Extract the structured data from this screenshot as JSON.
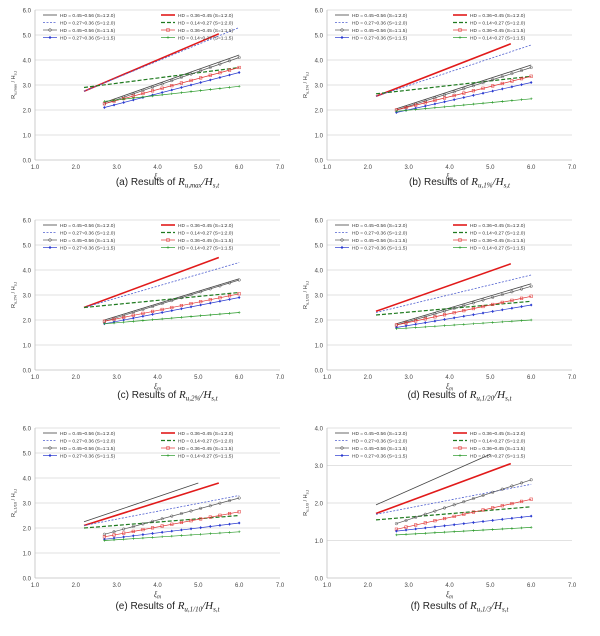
{
  "charts": [
    {
      "chart_data": {
        "type": "line",
        "caption": {
          "prefix": "(a) Results of ",
          "main": "R",
          "sub": "u,max",
          "suffix": "/H",
          "suffix_sub": "s,t"
        },
        "xlabel": {
          "main": "ξ",
          "sub": "m"
        },
        "ylabel": {
          "main": "R",
          "sub": "u,max",
          "tail": " / H",
          "tail_sub": "s,t"
        },
        "xlim": [
          1.0,
          7.0
        ],
        "ylim": [
          0.0,
          6.0
        ],
        "xticks": [
          "1.0",
          "2.0",
          "3.0",
          "4.0",
          "5.0",
          "6.0",
          "7.0"
        ],
        "yticks": [
          "0.0",
          "1.0",
          "2.0",
          "3.0",
          "4.0",
          "5.0",
          "6.0"
        ],
        "grid": true,
        "legend_position": "top",
        "series": [
          {
            "name": "HD = 0.45~0.56 (S=1:2.0)",
            "style": "thin-dark",
            "x": [
              2.7,
              6.0
            ],
            "y": [
              2.3,
              4.2
            ]
          },
          {
            "name": "HD = 0.36~0.45 (S=1:2.0)",
            "style": "bold-red",
            "x": [
              2.2,
              5.5
            ],
            "y": [
              2.75,
              5.05
            ]
          },
          {
            "name": "HD = 0.27~0.36 (S=1:2.0)",
            "style": "dashed-blue",
            "x": [
              2.2,
              6.0
            ],
            "y": [
              2.75,
              5.3
            ]
          },
          {
            "name": "HD = 0.14~0.27 (S=1:2.0)",
            "style": "dashed-green",
            "x": [
              2.2,
              6.0
            ],
            "y": [
              2.9,
              3.7
            ]
          },
          {
            "name": "HD = 0.45~0.56 (S=1:1.5)",
            "style": "marker-dark",
            "x": [
              2.7,
              6.0
            ],
            "y": [
              2.25,
              4.1
            ]
          },
          {
            "name": "HD = 0.36~0.45 (S=1:1.5)",
            "style": "marker-red",
            "x": [
              2.7,
              6.0
            ],
            "y": [
              2.25,
              3.7
            ]
          },
          {
            "name": "HD = 0.27~0.36 (S=1:1.5)",
            "style": "marker-blue",
            "x": [
              2.7,
              6.0
            ],
            "y": [
              2.1,
              3.5
            ]
          },
          {
            "name": "HD = 0.14~0.27 (S=1:1.5)",
            "style": "marker-green",
            "x": [
              2.7,
              6.0
            ],
            "y": [
              2.35,
              2.95
            ]
          }
        ]
      }
    },
    {
      "chart_data": {
        "type": "line",
        "caption": {
          "prefix": "(b) Results of ",
          "main": "R",
          "sub": "u,1%",
          "suffix": "/H",
          "suffix_sub": "s,t"
        },
        "xlabel": {
          "main": "ξ",
          "sub": "m"
        },
        "ylabel": {
          "main": "R",
          "sub": "u,1%",
          "tail": " / H",
          "tail_sub": "s,t"
        },
        "xlim": [
          1.0,
          7.0
        ],
        "ylim": [
          0.0,
          6.0
        ],
        "xticks": [
          "1.0",
          "2.0",
          "3.0",
          "4.0",
          "5.0",
          "6.0",
          "7.0"
        ],
        "yticks": [
          "0.0",
          "1.0",
          "2.0",
          "3.0",
          "4.0",
          "5.0",
          "6.0"
        ],
        "grid": true,
        "legend_position": "top",
        "series": [
          {
            "name": "HD = 0.45~0.56 (S=1:2.0)",
            "style": "thin-dark",
            "x": [
              2.7,
              6.0
            ],
            "y": [
              2.05,
              3.8
            ]
          },
          {
            "name": "HD = 0.36~0.45 (S=1:2.0)",
            "style": "bold-red",
            "x": [
              2.2,
              5.5
            ],
            "y": [
              2.55,
              4.65
            ]
          },
          {
            "name": "HD = 0.27~0.36 (S=1:2.0)",
            "style": "dashed-blue",
            "x": [
              2.2,
              6.0
            ],
            "y": [
              2.55,
              4.6
            ]
          },
          {
            "name": "HD = 0.14~0.27 (S=1:2.0)",
            "style": "dashed-green",
            "x": [
              2.2,
              6.0
            ],
            "y": [
              2.65,
              3.35
            ]
          },
          {
            "name": "HD = 0.45~0.56 (S=1:1.5)",
            "style": "marker-dark",
            "x": [
              2.7,
              6.0
            ],
            "y": [
              2.0,
              3.7
            ]
          },
          {
            "name": "HD = 0.36~0.45 (S=1:1.5)",
            "style": "marker-red",
            "x": [
              2.7,
              6.0
            ],
            "y": [
              2.0,
              3.35
            ]
          },
          {
            "name": "HD = 0.27~0.36 (S=1:1.5)",
            "style": "marker-blue",
            "x": [
              2.7,
              6.0
            ],
            "y": [
              1.9,
              3.1
            ]
          },
          {
            "name": "HD = 0.14~0.27 (S=1:1.5)",
            "style": "marker-green",
            "x": [
              2.7,
              6.0
            ],
            "y": [
              1.95,
              2.45
            ]
          }
        ]
      }
    },
    {
      "chart_data": {
        "type": "line",
        "caption": {
          "prefix": "(c) Results of ",
          "main": "R",
          "sub": "u,2%",
          "suffix": "/H",
          "suffix_sub": "s,t"
        },
        "xlabel": {
          "main": "ξ",
          "sub": "m"
        },
        "ylabel": {
          "main": "R",
          "sub": "u,2%",
          "tail": " / H",
          "tail_sub": "s,t"
        },
        "xlim": [
          1.0,
          7.0
        ],
        "ylim": [
          0.0,
          6.0
        ],
        "xticks": [
          "1.0",
          "2.0",
          "3.0",
          "4.0",
          "5.0",
          "6.0",
          "7.0"
        ],
        "yticks": [
          "0.0",
          "1.0",
          "2.0",
          "3.0",
          "4.0",
          "5.0",
          "6.0"
        ],
        "grid": true,
        "legend_position": "top",
        "series": [
          {
            "name": "HD = 0.45~0.56 (S=1:2.0)",
            "style": "thin-dark",
            "x": [
              2.7,
              6.0
            ],
            "y": [
              2.0,
              3.65
            ]
          },
          {
            "name": "HD = 0.36~0.45 (S=1:2.0)",
            "style": "bold-red",
            "x": [
              2.2,
              5.5
            ],
            "y": [
              2.5,
              4.5
            ]
          },
          {
            "name": "HD = 0.27~0.36 (S=1:2.0)",
            "style": "dashed-blue",
            "x": [
              2.2,
              6.0
            ],
            "y": [
              2.5,
              4.3
            ]
          },
          {
            "name": "HD = 0.14~0.27 (S=1:2.0)",
            "style": "dashed-green",
            "x": [
              2.2,
              6.0
            ],
            "y": [
              2.5,
              3.1
            ]
          },
          {
            "name": "HD = 0.45~0.56 (S=1:1.5)",
            "style": "marker-dark",
            "x": [
              2.7,
              6.0
            ],
            "y": [
              1.95,
              3.6
            ]
          },
          {
            "name": "HD = 0.36~0.45 (S=1:1.5)",
            "style": "marker-red",
            "x": [
              2.7,
              6.0
            ],
            "y": [
              1.95,
              3.05
            ]
          },
          {
            "name": "HD = 0.27~0.36 (S=1:1.5)",
            "style": "marker-blue",
            "x": [
              2.7,
              6.0
            ],
            "y": [
              1.85,
              2.9
            ]
          },
          {
            "name": "HD = 0.14~0.27 (S=1:1.5)",
            "style": "marker-green",
            "x": [
              2.7,
              6.0
            ],
            "y": [
              1.85,
              2.3
            ]
          }
        ]
      }
    },
    {
      "chart_data": {
        "type": "line",
        "caption": {
          "prefix": "(d) Results of ",
          "main": "R",
          "sub": "u,1/20",
          "suffix": "/H",
          "suffix_sub": "s,t"
        },
        "xlabel": {
          "main": "ξ",
          "sub": "m"
        },
        "ylabel": {
          "main": "R",
          "sub": "u,1/20",
          "tail": " / H",
          "tail_sub": "s,t"
        },
        "xlim": [
          1.0,
          7.0
        ],
        "ylim": [
          0.0,
          6.0
        ],
        "xticks": [
          "1.0",
          "2.0",
          "3.0",
          "4.0",
          "5.0",
          "6.0",
          "7.0"
        ],
        "yticks": [
          "0.0",
          "1.0",
          "2.0",
          "3.0",
          "4.0",
          "5.0",
          "6.0"
        ],
        "grid": true,
        "legend_position": "top",
        "series": [
          {
            "name": "HD = 0.45~0.56 (S=1:2.0)",
            "style": "thin-dark",
            "x": [
              2.7,
              6.0
            ],
            "y": [
              1.85,
              3.45
            ]
          },
          {
            "name": "HD = 0.36~0.45 (S=1:2.0)",
            "style": "bold-red",
            "x": [
              2.2,
              5.5
            ],
            "y": [
              2.35,
              4.25
            ]
          },
          {
            "name": "HD = 0.27~0.36 (S=1:2.0)",
            "style": "dashed-blue",
            "x": [
              2.2,
              6.0
            ],
            "y": [
              2.3,
              3.8
            ]
          },
          {
            "name": "HD = 0.14~0.27 (S=1:2.0)",
            "style": "dashed-green",
            "x": [
              2.2,
              6.0
            ],
            "y": [
              2.2,
              2.75
            ]
          },
          {
            "name": "HD = 0.45~0.56 (S=1:1.5)",
            "style": "marker-dark",
            "x": [
              2.7,
              6.0
            ],
            "y": [
              1.8,
              3.35
            ]
          },
          {
            "name": "HD = 0.36~0.45 (S=1:1.5)",
            "style": "marker-red",
            "x": [
              2.7,
              6.0
            ],
            "y": [
              1.8,
              2.95
            ]
          },
          {
            "name": "HD = 0.27~0.36 (S=1:1.5)",
            "style": "marker-blue",
            "x": [
              2.7,
              6.0
            ],
            "y": [
              1.7,
              2.6
            ]
          },
          {
            "name": "HD = 0.14~0.27 (S=1:1.5)",
            "style": "marker-green",
            "x": [
              2.7,
              6.0
            ],
            "y": [
              1.65,
              2.0
            ]
          }
        ]
      }
    },
    {
      "chart_data": {
        "type": "line",
        "caption": {
          "prefix": "(e) Results of ",
          "main": "R",
          "sub": "u,1/10",
          "suffix": "/H",
          "suffix_sub": "s,t"
        },
        "xlabel": {
          "main": "ξ",
          "sub": "m"
        },
        "ylabel": {
          "main": "R",
          "sub": "u,1/10",
          "tail": " / H",
          "tail_sub": "s,t"
        },
        "xlim": [
          1.0,
          7.0
        ],
        "ylim": [
          0.0,
          6.0
        ],
        "xticks": [
          "1.0",
          "2.0",
          "3.0",
          "4.0",
          "5.0",
          "6.0",
          "7.0"
        ],
        "yticks": [
          "0.0",
          "1.0",
          "2.0",
          "3.0",
          "4.0",
          "5.0",
          "6.0"
        ],
        "grid": true,
        "legend_position": "top",
        "series": [
          {
            "name": "HD = 0.45~0.56 (S=1:2.0)",
            "style": "thin-dark",
            "x": [
              2.2,
              5.0
            ],
            "y": [
              2.25,
              3.8
            ]
          },
          {
            "name": "HD = 0.36~0.45 (S=1:2.0)",
            "style": "bold-red",
            "x": [
              2.2,
              5.5
            ],
            "y": [
              2.1,
              3.8
            ]
          },
          {
            "name": "HD = 0.27~0.36 (S=1:2.0)",
            "style": "dashed-blue",
            "x": [
              2.2,
              6.0
            ],
            "y": [
              2.1,
              3.3
            ]
          },
          {
            "name": "HD = 0.14~0.27 (S=1:2.0)",
            "style": "dashed-green",
            "x": [
              2.2,
              6.0
            ],
            "y": [
              2.0,
              2.5
            ]
          },
          {
            "name": "HD = 0.45~0.56 (S=1:1.5)",
            "style": "marker-dark",
            "x": [
              2.7,
              6.0
            ],
            "y": [
              1.75,
              3.2
            ]
          },
          {
            "name": "HD = 0.36~0.45 (S=1:1.5)",
            "style": "marker-red",
            "x": [
              2.7,
              6.0
            ],
            "y": [
              1.65,
              2.65
            ]
          },
          {
            "name": "HD = 0.27~0.36 (S=1:1.5)",
            "style": "marker-blue",
            "x": [
              2.7,
              6.0
            ],
            "y": [
              1.55,
              2.2
            ]
          },
          {
            "name": "HD = 0.14~0.27 (S=1:1.5)",
            "style": "marker-green",
            "x": [
              2.7,
              6.0
            ],
            "y": [
              1.5,
              1.85
            ]
          }
        ]
      }
    },
    {
      "chart_data": {
        "type": "line",
        "caption": {
          "prefix": "(f) Results of ",
          "main": "R",
          "sub": "u,1/3",
          "suffix": "/H",
          "suffix_sub": "s,t"
        },
        "xlabel": {
          "main": "ξ",
          "sub": "m"
        },
        "ylabel": {
          "main": "R",
          "sub": "u,1/3",
          "tail": " / H",
          "tail_sub": "s,t"
        },
        "xlim": [
          1.0,
          7.0
        ],
        "ylim": [
          0.0,
          4.0
        ],
        "xticks": [
          "1.0",
          "2.0",
          "3.0",
          "4.0",
          "5.0",
          "6.0",
          "7.0"
        ],
        "yticks": [
          "0.0",
          "1.0",
          "2.0",
          "3.0",
          "4.0"
        ],
        "grid": true,
        "legend_position": "top",
        "series": [
          {
            "name": "HD = 0.45~0.56 (S=1:2.0)",
            "style": "thin-dark",
            "x": [
              2.2,
              5.0
            ],
            "y": [
              1.95,
              3.3
            ]
          },
          {
            "name": "HD = 0.36~0.45 (S=1:2.0)",
            "style": "bold-red",
            "x": [
              2.2,
              5.5
            ],
            "y": [
              1.72,
              3.05
            ]
          },
          {
            "name": "HD = 0.27~0.36 (S=1:2.0)",
            "style": "dashed-blue",
            "x": [
              2.2,
              6.0
            ],
            "y": [
              1.7,
              2.5
            ]
          },
          {
            "name": "HD = 0.14~0.27 (S=1:2.0)",
            "style": "dashed-green",
            "x": [
              2.2,
              6.0
            ],
            "y": [
              1.55,
              1.9
            ]
          },
          {
            "name": "HD = 0.45~0.56 (S=1:1.5)",
            "style": "marker-dark",
            "x": [
              2.7,
              6.0
            ],
            "y": [
              1.45,
              2.62
            ]
          },
          {
            "name": "HD = 0.36~0.45 (S=1:1.5)",
            "style": "marker-red",
            "x": [
              2.7,
              6.0
            ],
            "y": [
              1.3,
              2.1
            ]
          },
          {
            "name": "HD = 0.27~0.36 (S=1:1.5)",
            "style": "marker-blue",
            "x": [
              2.7,
              6.0
            ],
            "y": [
              1.25,
              1.65
            ]
          },
          {
            "name": "HD = 0.14~0.27 (S=1:1.5)",
            "style": "marker-green",
            "x": [
              2.7,
              6.0
            ],
            "y": [
              1.15,
              1.35
            ]
          }
        ]
      }
    }
  ],
  "styles": {
    "thin-dark": {
      "color": "#444444",
      "marker": null
    },
    "bold-red": {
      "color": "#e11a1a",
      "marker": null
    },
    "dashed-blue": {
      "color": "#5060d0",
      "marker": null
    },
    "dashed-green": {
      "color": "#1f7a1f",
      "marker": null
    },
    "marker-dark": {
      "color": "#555555",
      "marker": "circle"
    },
    "marker-red": {
      "color": "#e03030",
      "marker": "square"
    },
    "marker-blue": {
      "color": "#2a3ad0",
      "marker": "diamond"
    },
    "marker-green": {
      "color": "#2a9a2a",
      "marker": "plus"
    }
  },
  "colors": {
    "grid": "#d9d9d9",
    "axis": "#bfbfbf",
    "tick_text": "#444444",
    "caption": "#222222"
  }
}
